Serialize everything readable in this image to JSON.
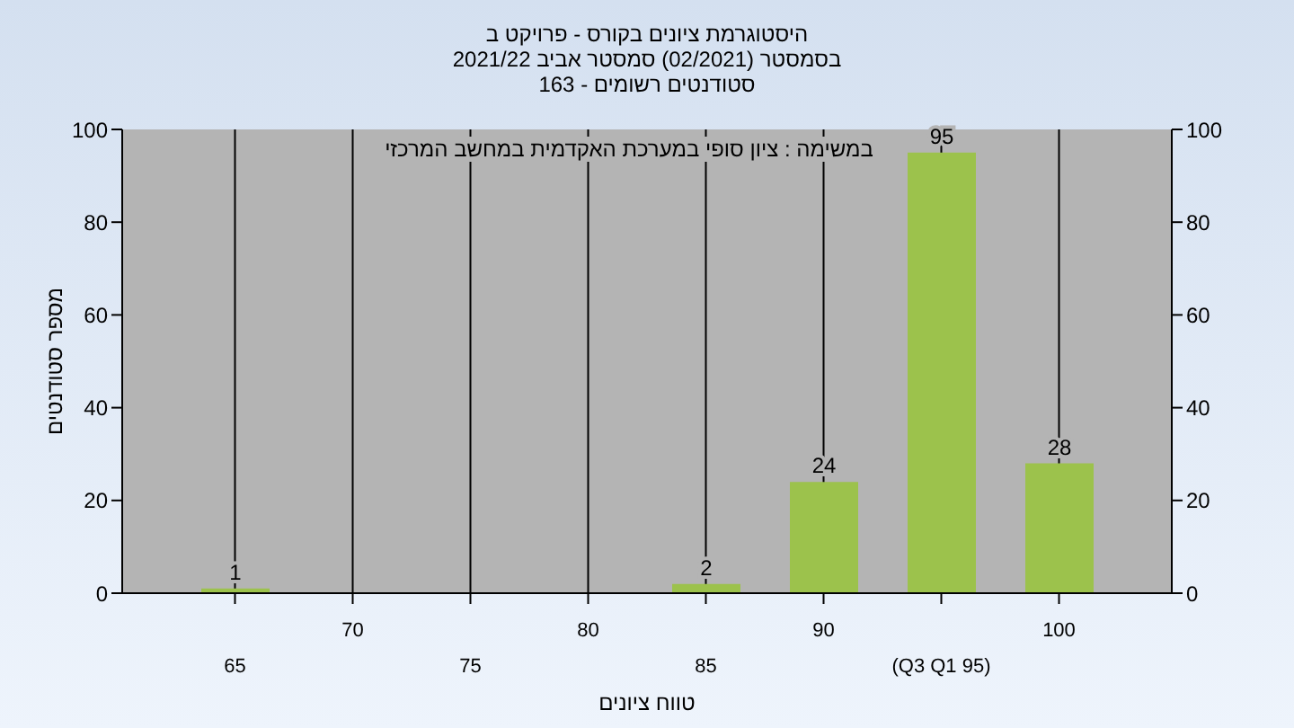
{
  "chart_data": {
    "type": "bar",
    "title": "היסטוגרמת ציונים בקורס - פרויקט ב",
    "subtitle": "בסמסטר (02/2021) סמסטר אביב 2021/22\nסטודנטים רשומים - 163",
    "xlabel": "טווח ציונים",
    "ylabel": "מספר סטודנטים",
    "annotations": [
      "במשימה : ציון סופי במערכת האקדמית במחשב המרכזי"
    ],
    "categories": [
      "65",
      "70",
      "75",
      "80",
      "85",
      "90",
      "(Q3 Q1 95)",
      "100"
    ],
    "values": [
      1,
      0,
      0,
      0,
      2,
      24,
      95,
      28
    ],
    "value_labels": [
      "1",
      null,
      null,
      null,
      "2",
      "24",
      "95",
      "28"
    ],
    "color": "#9cc24c",
    "ylim": [
      0,
      100
    ],
    "yticks": [
      0,
      20,
      40,
      60,
      80,
      100
    ],
    "y2lim": [
      0,
      100
    ],
    "y2ticks": [
      0,
      20,
      40,
      60,
      80,
      100
    ],
    "grid": "x"
  }
}
